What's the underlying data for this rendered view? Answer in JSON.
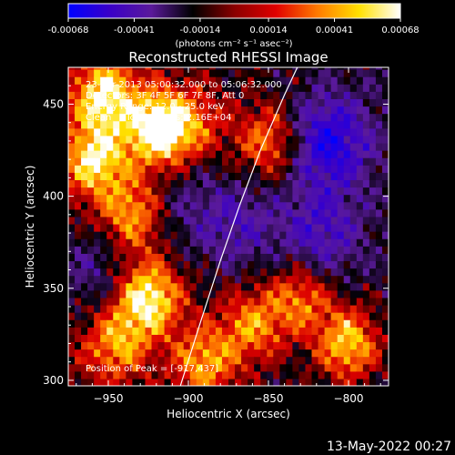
{
  "chart_data": {
    "type": "heatmap",
    "title": "Reconstructed RHESSI Image",
    "xlabel": "Heliocentric X (arcsec)",
    "ylabel": "Heliocentric Y (arcsec)",
    "xlim": [
      -975,
      -775
    ],
    "ylim": [
      297,
      470
    ],
    "x_ticks": [
      -950,
      -900,
      -850,
      -800
    ],
    "y_ticks": [
      300,
      350,
      400,
      450
    ],
    "colorbar": {
      "ticks": [
        -0.00068,
        -0.00041,
        -0.00014,
        0.00014,
        0.00041,
        0.00068
      ],
      "tick_labels": [
        "-0.00068",
        "-0.00041",
        "-0.00014",
        "0.00014",
        "0.00041",
        "0.00068"
      ],
      "units": "(photons cm⁻² s⁻¹ asec⁻²)",
      "range": [
        -0.00068,
        0.00068
      ],
      "colors": [
        "#0000ff",
        "#3a00c8",
        "#5a1a9a",
        "#000000",
        "#8a0000",
        "#e00000",
        "#ff7a00",
        "#ffe000",
        "#ffffff"
      ]
    },
    "limb_curve": {
      "description_points_arcsec": [
        [
          -905,
          297
        ],
        [
          -893,
          330
        ],
        [
          -880,
          365
        ],
        [
          -868,
          395
        ],
        [
          -855,
          425
        ],
        [
          -840,
          455
        ],
        [
          -832,
          470
        ]
      ]
    },
    "hot_spots": [
      {
        "x": -918,
        "y": 437,
        "intensity": 1.0
      },
      {
        "x": -952,
        "y": 455,
        "intensity": 0.8
      },
      {
        "x": -958,
        "y": 420,
        "intensity": 0.75
      },
      {
        "x": -935,
        "y": 390,
        "intensity": 0.6
      },
      {
        "x": -925,
        "y": 345,
        "intensity": 0.85
      },
      {
        "x": -945,
        "y": 320,
        "intensity": 0.55
      },
      {
        "x": -890,
        "y": 310,
        "intensity": 0.6
      },
      {
        "x": -860,
        "y": 330,
        "intensity": 0.55
      },
      {
        "x": -800,
        "y": 320,
        "intensity": 0.75
      },
      {
        "x": -830,
        "y": 345,
        "intensity": 0.55
      },
      {
        "x": -850,
        "y": 430,
        "intensity": 0.55
      },
      {
        "x": -895,
        "y": 440,
        "intensity": 0.35
      }
    ],
    "cold_spots": [
      {
        "x": -812,
        "y": 430,
        "intensity": 0.9
      },
      {
        "x": -818,
        "y": 380,
        "intensity": 0.6
      },
      {
        "x": -870,
        "y": 385,
        "intensity": 0.5
      },
      {
        "x": -960,
        "y": 360,
        "intensity": 0.45
      },
      {
        "x": -905,
        "y": 395,
        "intensity": 0.3
      }
    ]
  },
  "overlay": {
    "time_line": "23-Apr-2013 05:00:32.000 to 05:06:32.000",
    "detectors_line": "Detectors: 3F 4F 5F 6F 7F 8F, Att 0",
    "energy_line": "Energy Range: 12.0 - 25.0 keV",
    "clean_line": "Clean     Total counts: 2.16E+04",
    "peak_line": "Position of Peak = [-917,437]"
  },
  "footer": {
    "date_stamp": "13-May-2022 00:27"
  },
  "colors": {
    "background": "#000000",
    "text": "#ffffff"
  }
}
